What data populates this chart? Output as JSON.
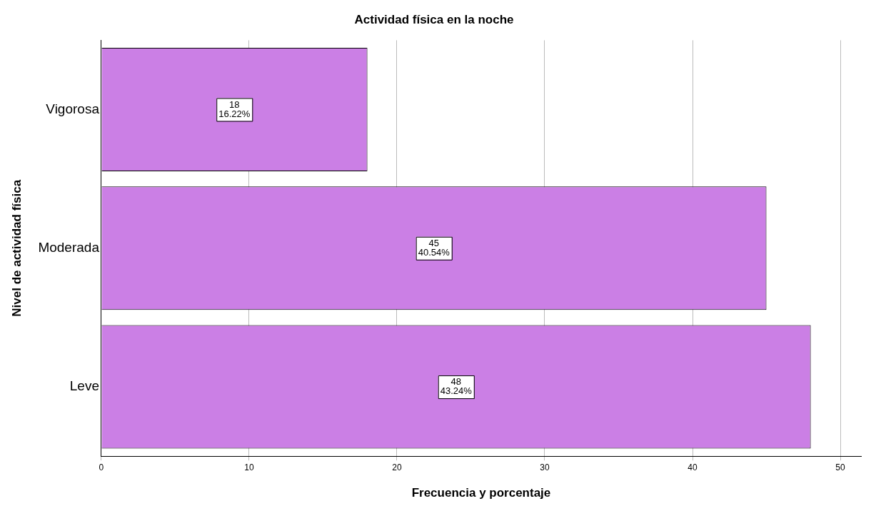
{
  "chart_data": {
    "type": "bar",
    "orientation": "horizontal",
    "title": "Actividad física en la noche",
    "xlabel": "Frecuencia y porcentaje",
    "ylabel": "Nivel de actividad física",
    "categories": [
      "Vigorosa",
      "Moderada",
      "Leve"
    ],
    "values": [
      18,
      45,
      48
    ],
    "value_labels": [
      "18\n16.22%",
      "45\n40.54%",
      "48\n43.24%"
    ],
    "color": "#cb7fe5",
    "xlim": [
      0,
      51.4
    ],
    "xticks": [
      0,
      10,
      20,
      30,
      40,
      50
    ],
    "grid": "x",
    "legend": false
  }
}
